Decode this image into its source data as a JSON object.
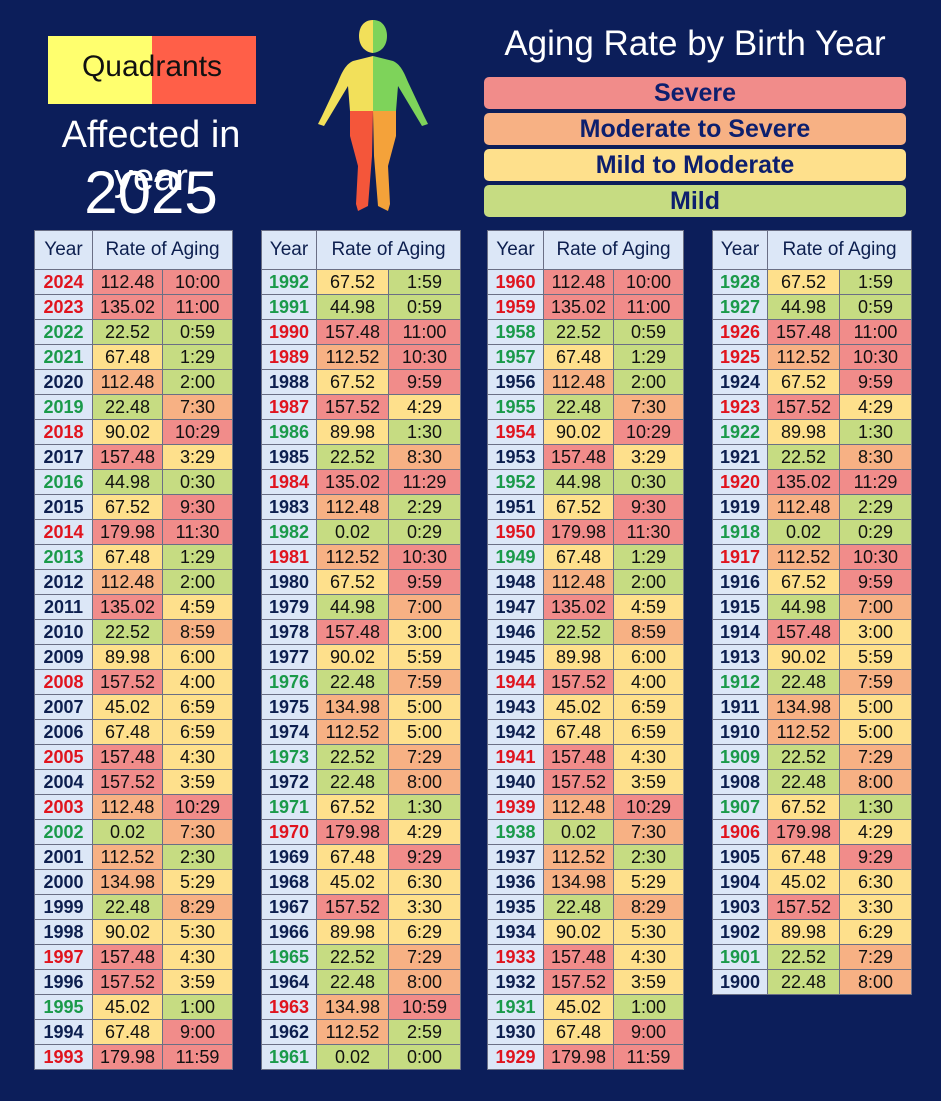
{
  "quadrants_label": "Quadrants",
  "affected_label": "Affected in year",
  "affected_year": "2025",
  "title": "Aging Rate by Birth Year",
  "legend": [
    {
      "label": "Severe",
      "color": "#f18c8a"
    },
    {
      "label": "Moderate to Severe",
      "color": "#f7b184"
    },
    {
      "label": "Mild to Moderate",
      "color": "#fee08c"
    },
    {
      "label": "Mild",
      "color": "#c6dc82"
    }
  ],
  "headers": {
    "year": "Year",
    "rate": "Rate of Aging"
  },
  "year_colors": {
    "r": "#e0141e",
    "g": "#1a9a4a",
    "b": "#0d1f4f"
  },
  "columns": [
    [
      [
        "2024",
        "112.48",
        "10:00",
        "r",
        "R",
        "R"
      ],
      [
        "2023",
        "135.02",
        "11:00",
        "r",
        "R",
        "R"
      ],
      [
        "2022",
        "22.52",
        "0:59",
        "g",
        "G",
        "G"
      ],
      [
        "2021",
        "67.48",
        "1:29",
        "g",
        "Y",
        "G"
      ],
      [
        "2020",
        "112.48",
        "2:00",
        "b",
        "O",
        "G"
      ],
      [
        "2019",
        "22.48",
        "7:30",
        "g",
        "G",
        "O"
      ],
      [
        "2018",
        "90.02",
        "10:29",
        "r",
        "Y",
        "R"
      ],
      [
        "2017",
        "157.48",
        "3:29",
        "b",
        "R",
        "Y"
      ],
      [
        "2016",
        "44.98",
        "0:30",
        "g",
        "G",
        "G"
      ],
      [
        "2015",
        "67.52",
        "9:30",
        "b",
        "Y",
        "R"
      ],
      [
        "2014",
        "179.98",
        "11:30",
        "r",
        "R",
        "R"
      ],
      [
        "2013",
        "67.48",
        "1:29",
        "g",
        "Y",
        "G"
      ],
      [
        "2012",
        "112.48",
        "2:00",
        "b",
        "O",
        "G"
      ],
      [
        "2011",
        "135.02",
        "4:59",
        "b",
        "R",
        "Y"
      ],
      [
        "2010",
        "22.52",
        "8:59",
        "b",
        "G",
        "O"
      ],
      [
        "2009",
        "89.98",
        "6:00",
        "b",
        "Y",
        "Y"
      ],
      [
        "2008",
        "157.52",
        "4:00",
        "r",
        "R",
        "Y"
      ],
      [
        "2007",
        "45.02",
        "6:59",
        "b",
        "Y",
        "Y"
      ],
      [
        "2006",
        "67.48",
        "6:59",
        "b",
        "Y",
        "Y"
      ],
      [
        "2005",
        "157.48",
        "4:30",
        "r",
        "R",
        "Y"
      ],
      [
        "2004",
        "157.52",
        "3:59",
        "b",
        "R",
        "Y"
      ],
      [
        "2003",
        "112.48",
        "10:29",
        "r",
        "O",
        "R"
      ],
      [
        "2002",
        "0.02",
        "7:30",
        "g",
        "G",
        "O"
      ],
      [
        "2001",
        "112.52",
        "2:30",
        "b",
        "O",
        "G"
      ],
      [
        "2000",
        "134.98",
        "5:29",
        "b",
        "O",
        "Y"
      ],
      [
        "1999",
        "22.48",
        "8:29",
        "b",
        "G",
        "O"
      ],
      [
        "1998",
        "90.02",
        "5:30",
        "b",
        "Y",
        "Y"
      ],
      [
        "1997",
        "157.48",
        "4:30",
        "r",
        "R",
        "Y"
      ],
      [
        "1996",
        "157.52",
        "3:59",
        "b",
        "R",
        "Y"
      ],
      [
        "1995",
        "45.02",
        "1:00",
        "g",
        "Y",
        "G"
      ],
      [
        "1994",
        "67.48",
        "9:00",
        "b",
        "Y",
        "R"
      ],
      [
        "1993",
        "179.98",
        "11:59",
        "r",
        "R",
        "R"
      ]
    ],
    [
      [
        "1992",
        "67.52",
        "1:59",
        "g",
        "Y",
        "G"
      ],
      [
        "1991",
        "44.98",
        "0:59",
        "g",
        "G",
        "G"
      ],
      [
        "1990",
        "157.48",
        "11:00",
        "r",
        "R",
        "R"
      ],
      [
        "1989",
        "112.52",
        "10:30",
        "r",
        "O",
        "R"
      ],
      [
        "1988",
        "67.52",
        "9:59",
        "b",
        "Y",
        "R"
      ],
      [
        "1987",
        "157.52",
        "4:29",
        "r",
        "R",
        "Y"
      ],
      [
        "1986",
        "89.98",
        "1:30",
        "g",
        "Y",
        "G"
      ],
      [
        "1985",
        "22.52",
        "8:30",
        "b",
        "G",
        "O"
      ],
      [
        "1984",
        "135.02",
        "11:29",
        "r",
        "R",
        "R"
      ],
      [
        "1983",
        "112.48",
        "2:29",
        "b",
        "O",
        "G"
      ],
      [
        "1982",
        "0.02",
        "0:29",
        "g",
        "G",
        "G"
      ],
      [
        "1981",
        "112.52",
        "10:30",
        "r",
        "O",
        "R"
      ],
      [
        "1980",
        "67.52",
        "9:59",
        "b",
        "Y",
        "R"
      ],
      [
        "1979",
        "44.98",
        "7:00",
        "b",
        "G",
        "O"
      ],
      [
        "1978",
        "157.48",
        "3:00",
        "b",
        "R",
        "Y"
      ],
      [
        "1977",
        "90.02",
        "5:59",
        "b",
        "Y",
        "Y"
      ],
      [
        "1976",
        "22.48",
        "7:59",
        "g",
        "G",
        "O"
      ],
      [
        "1975",
        "134.98",
        "5:00",
        "b",
        "O",
        "Y"
      ],
      [
        "1974",
        "112.52",
        "5:00",
        "b",
        "O",
        "Y"
      ],
      [
        "1973",
        "22.52",
        "7:29",
        "g",
        "G",
        "O"
      ],
      [
        "1972",
        "22.48",
        "8:00",
        "b",
        "G",
        "O"
      ],
      [
        "1971",
        "67.52",
        "1:30",
        "g",
        "Y",
        "G"
      ],
      [
        "1970",
        "179.98",
        "4:29",
        "r",
        "R",
        "Y"
      ],
      [
        "1969",
        "67.48",
        "9:29",
        "b",
        "Y",
        "R"
      ],
      [
        "1968",
        "45.02",
        "6:30",
        "b",
        "Y",
        "Y"
      ],
      [
        "1967",
        "157.52",
        "3:30",
        "b",
        "R",
        "Y"
      ],
      [
        "1966",
        "89.98",
        "6:29",
        "b",
        "Y",
        "Y"
      ],
      [
        "1965",
        "22.52",
        "7:29",
        "g",
        "G",
        "O"
      ],
      [
        "1964",
        "22.48",
        "8:00",
        "b",
        "G",
        "O"
      ],
      [
        "1963",
        "134.98",
        "10:59",
        "r",
        "O",
        "R"
      ],
      [
        "1962",
        "112.52",
        "2:59",
        "b",
        "O",
        "G"
      ],
      [
        "1961",
        "0.02",
        "0:00",
        "g",
        "G",
        "G"
      ]
    ],
    [
      [
        "1960",
        "112.48",
        "10:00",
        "r",
        "R",
        "R"
      ],
      [
        "1959",
        "135.02",
        "11:00",
        "r",
        "R",
        "R"
      ],
      [
        "1958",
        "22.52",
        "0:59",
        "g",
        "G",
        "G"
      ],
      [
        "1957",
        "67.48",
        "1:29",
        "g",
        "Y",
        "G"
      ],
      [
        "1956",
        "112.48",
        "2:00",
        "b",
        "O",
        "G"
      ],
      [
        "1955",
        "22.48",
        "7:30",
        "g",
        "G",
        "O"
      ],
      [
        "1954",
        "90.02",
        "10:29",
        "r",
        "Y",
        "R"
      ],
      [
        "1953",
        "157.48",
        "3:29",
        "b",
        "R",
        "Y"
      ],
      [
        "1952",
        "44.98",
        "0:30",
        "g",
        "G",
        "G"
      ],
      [
        "1951",
        "67.52",
        "9:30",
        "b",
        "Y",
        "R"
      ],
      [
        "1950",
        "179.98",
        "11:30",
        "r",
        "R",
        "R"
      ],
      [
        "1949",
        "67.48",
        "1:29",
        "g",
        "Y",
        "G"
      ],
      [
        "1948",
        "112.48",
        "2:00",
        "b",
        "O",
        "G"
      ],
      [
        "1947",
        "135.02",
        "4:59",
        "b",
        "R",
        "Y"
      ],
      [
        "1946",
        "22.52",
        "8:59",
        "b",
        "G",
        "O"
      ],
      [
        "1945",
        "89.98",
        "6:00",
        "b",
        "Y",
        "Y"
      ],
      [
        "1944",
        "157.52",
        "4:00",
        "r",
        "R",
        "Y"
      ],
      [
        "1943",
        "45.02",
        "6:59",
        "b",
        "Y",
        "Y"
      ],
      [
        "1942",
        "67.48",
        "6:59",
        "b",
        "Y",
        "Y"
      ],
      [
        "1941",
        "157.48",
        "4:30",
        "r",
        "R",
        "Y"
      ],
      [
        "1940",
        "157.52",
        "3:59",
        "b",
        "R",
        "Y"
      ],
      [
        "1939",
        "112.48",
        "10:29",
        "r",
        "O",
        "R"
      ],
      [
        "1938",
        "0.02",
        "7:30",
        "g",
        "G",
        "O"
      ],
      [
        "1937",
        "112.52",
        "2:30",
        "b",
        "O",
        "G"
      ],
      [
        "1936",
        "134.98",
        "5:29",
        "b",
        "O",
        "Y"
      ],
      [
        "1935",
        "22.48",
        "8:29",
        "b",
        "G",
        "O"
      ],
      [
        "1934",
        "90.02",
        "5:30",
        "b",
        "Y",
        "Y"
      ],
      [
        "1933",
        "157.48",
        "4:30",
        "r",
        "R",
        "Y"
      ],
      [
        "1932",
        "157.52",
        "3:59",
        "b",
        "R",
        "Y"
      ],
      [
        "1931",
        "45.02",
        "1:00",
        "g",
        "Y",
        "G"
      ],
      [
        "1930",
        "67.48",
        "9:00",
        "b",
        "Y",
        "R"
      ],
      [
        "1929",
        "179.98",
        "11:59",
        "r",
        "R",
        "R"
      ]
    ],
    [
      [
        "1928",
        "67.52",
        "1:59",
        "g",
        "Y",
        "G"
      ],
      [
        "1927",
        "44.98",
        "0:59",
        "g",
        "G",
        "G"
      ],
      [
        "1926",
        "157.48",
        "11:00",
        "r",
        "R",
        "R"
      ],
      [
        "1925",
        "112.52",
        "10:30",
        "r",
        "O",
        "R"
      ],
      [
        "1924",
        "67.52",
        "9:59",
        "b",
        "Y",
        "R"
      ],
      [
        "1923",
        "157.52",
        "4:29",
        "r",
        "R",
        "Y"
      ],
      [
        "1922",
        "89.98",
        "1:30",
        "g",
        "Y",
        "G"
      ],
      [
        "1921",
        "22.52",
        "8:30",
        "b",
        "G",
        "O"
      ],
      [
        "1920",
        "135.02",
        "11:29",
        "r",
        "R",
        "R"
      ],
      [
        "1919",
        "112.48",
        "2:29",
        "b",
        "O",
        "G"
      ],
      [
        "1918",
        "0.02",
        "0:29",
        "g",
        "G",
        "G"
      ],
      [
        "1917",
        "112.52",
        "10:30",
        "r",
        "O",
        "R"
      ],
      [
        "1916",
        "67.52",
        "9:59",
        "b",
        "Y",
        "R"
      ],
      [
        "1915",
        "44.98",
        "7:00",
        "b",
        "G",
        "O"
      ],
      [
        "1914",
        "157.48",
        "3:00",
        "b",
        "R",
        "Y"
      ],
      [
        "1913",
        "90.02",
        "5:59",
        "b",
        "Y",
        "Y"
      ],
      [
        "1912",
        "22.48",
        "7:59",
        "g",
        "G",
        "O"
      ],
      [
        "1911",
        "134.98",
        "5:00",
        "b",
        "O",
        "Y"
      ],
      [
        "1910",
        "112.52",
        "5:00",
        "b",
        "O",
        "Y"
      ],
      [
        "1909",
        "22.52",
        "7:29",
        "g",
        "G",
        "O"
      ],
      [
        "1908",
        "22.48",
        "8:00",
        "b",
        "G",
        "O"
      ],
      [
        "1907",
        "67.52",
        "1:30",
        "g",
        "Y",
        "G"
      ],
      [
        "1906",
        "179.98",
        "4:29",
        "r",
        "R",
        "Y"
      ],
      [
        "1905",
        "67.48",
        "9:29",
        "b",
        "Y",
        "R"
      ],
      [
        "1904",
        "45.02",
        "6:30",
        "b",
        "Y",
        "Y"
      ],
      [
        "1903",
        "157.52",
        "3:30",
        "b",
        "R",
        "Y"
      ],
      [
        "1902",
        "89.98",
        "6:29",
        "b",
        "Y",
        "Y"
      ],
      [
        "1901",
        "22.52",
        "7:29",
        "g",
        "G",
        "O"
      ],
      [
        "1900",
        "22.48",
        "8:00",
        "b",
        "G",
        "O"
      ]
    ]
  ],
  "cell_colors": {
    "R": "#f18c8a",
    "O": "#f7b184",
    "Y": "#fee08c",
    "G": "#c6dc82"
  }
}
